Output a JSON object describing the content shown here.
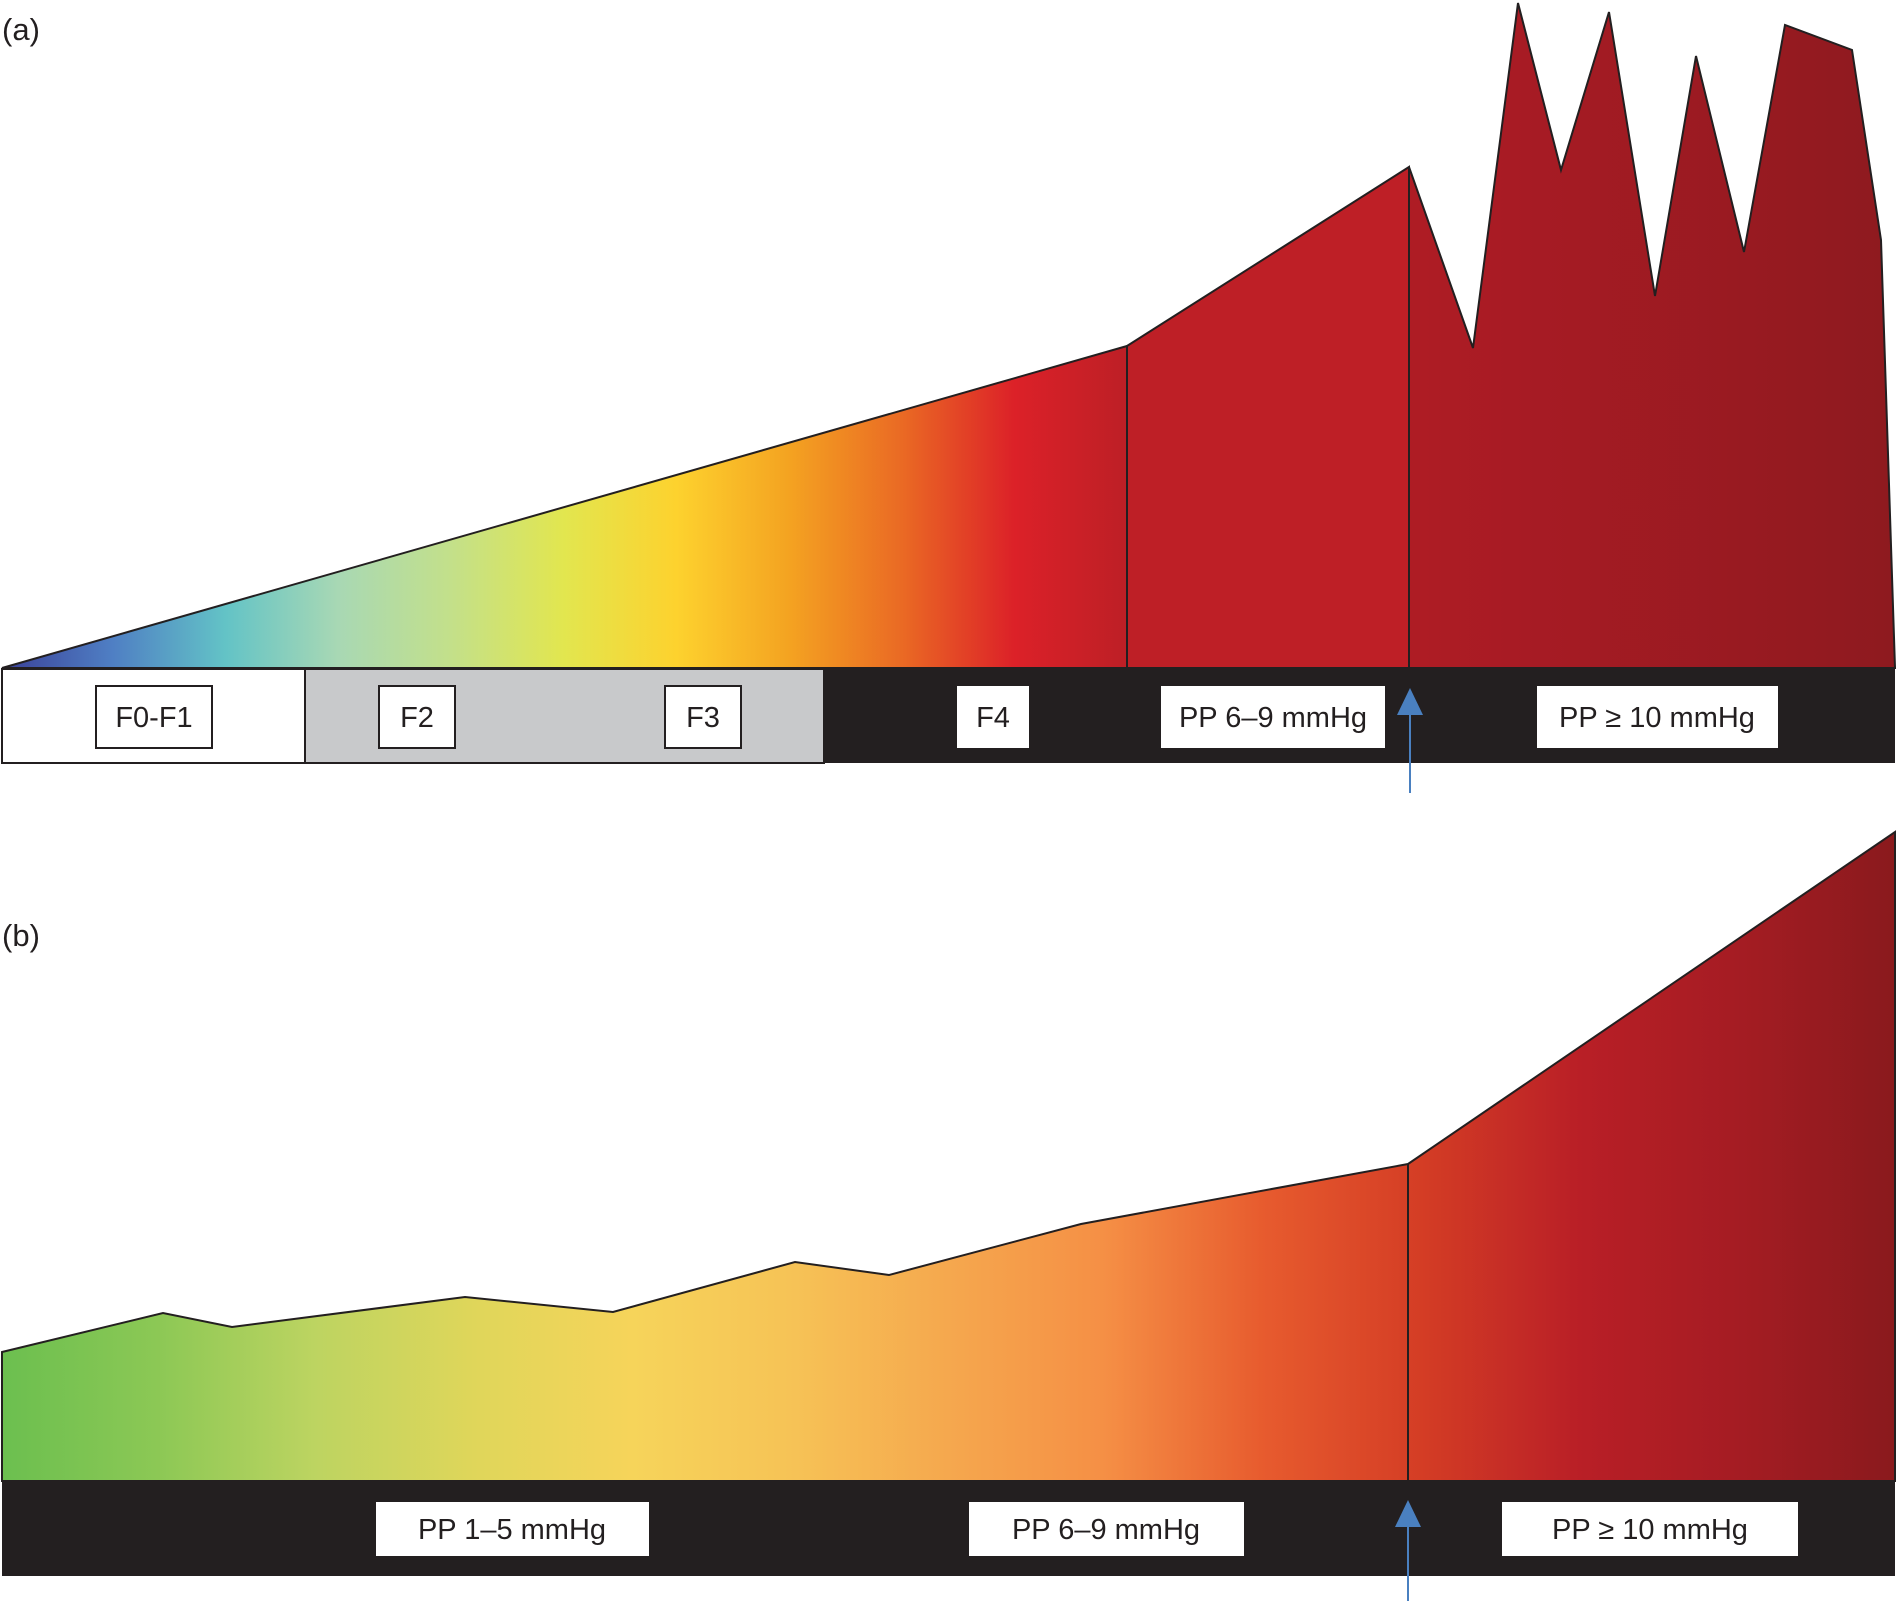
{
  "panel_a": {
    "label": "(a)",
    "stages": [
      "F0-F1",
      "F2",
      "F3",
      "F4"
    ],
    "pressure_labels": [
      "PP 6–9 mmHg",
      "PP ≥ 10 mmHg"
    ],
    "colors": {
      "gradient": [
        "#3a3f97",
        "#4f7fc4",
        "#63c3c6",
        "#a8d8b4",
        "#c3e08a",
        "#e2e64f",
        "#fdd22e",
        "#f4a321",
        "#ea6a24",
        "#dc2128",
        "#bd1f26"
      ],
      "high_pressure": [
        "#c11f26",
        "#a81b24",
        "#8e1a1f"
      ],
      "arrow": "#4a80c0",
      "bar_dark": "#231f20",
      "bar_gray": "#c8c9cb"
    }
  },
  "panel_b": {
    "label": "(b)",
    "pressure_labels": [
      "PP 1–5 mmHg",
      "PP 6–9 mmHg",
      "PP ≥ 10 mmHg"
    ],
    "colors": {
      "gradient": [
        "#6bbf4f",
        "#8cc855",
        "#bdd461",
        "#dfd65a",
        "#f6d45a",
        "#f6c356",
        "#f5a84e",
        "#f58f45",
        "#e75b2e",
        "#d43d25",
        "#b91f26",
        "#a51c23",
        "#8a1a1d"
      ],
      "arrow": "#4a80c0",
      "bar_dark": "#231f20"
    }
  }
}
